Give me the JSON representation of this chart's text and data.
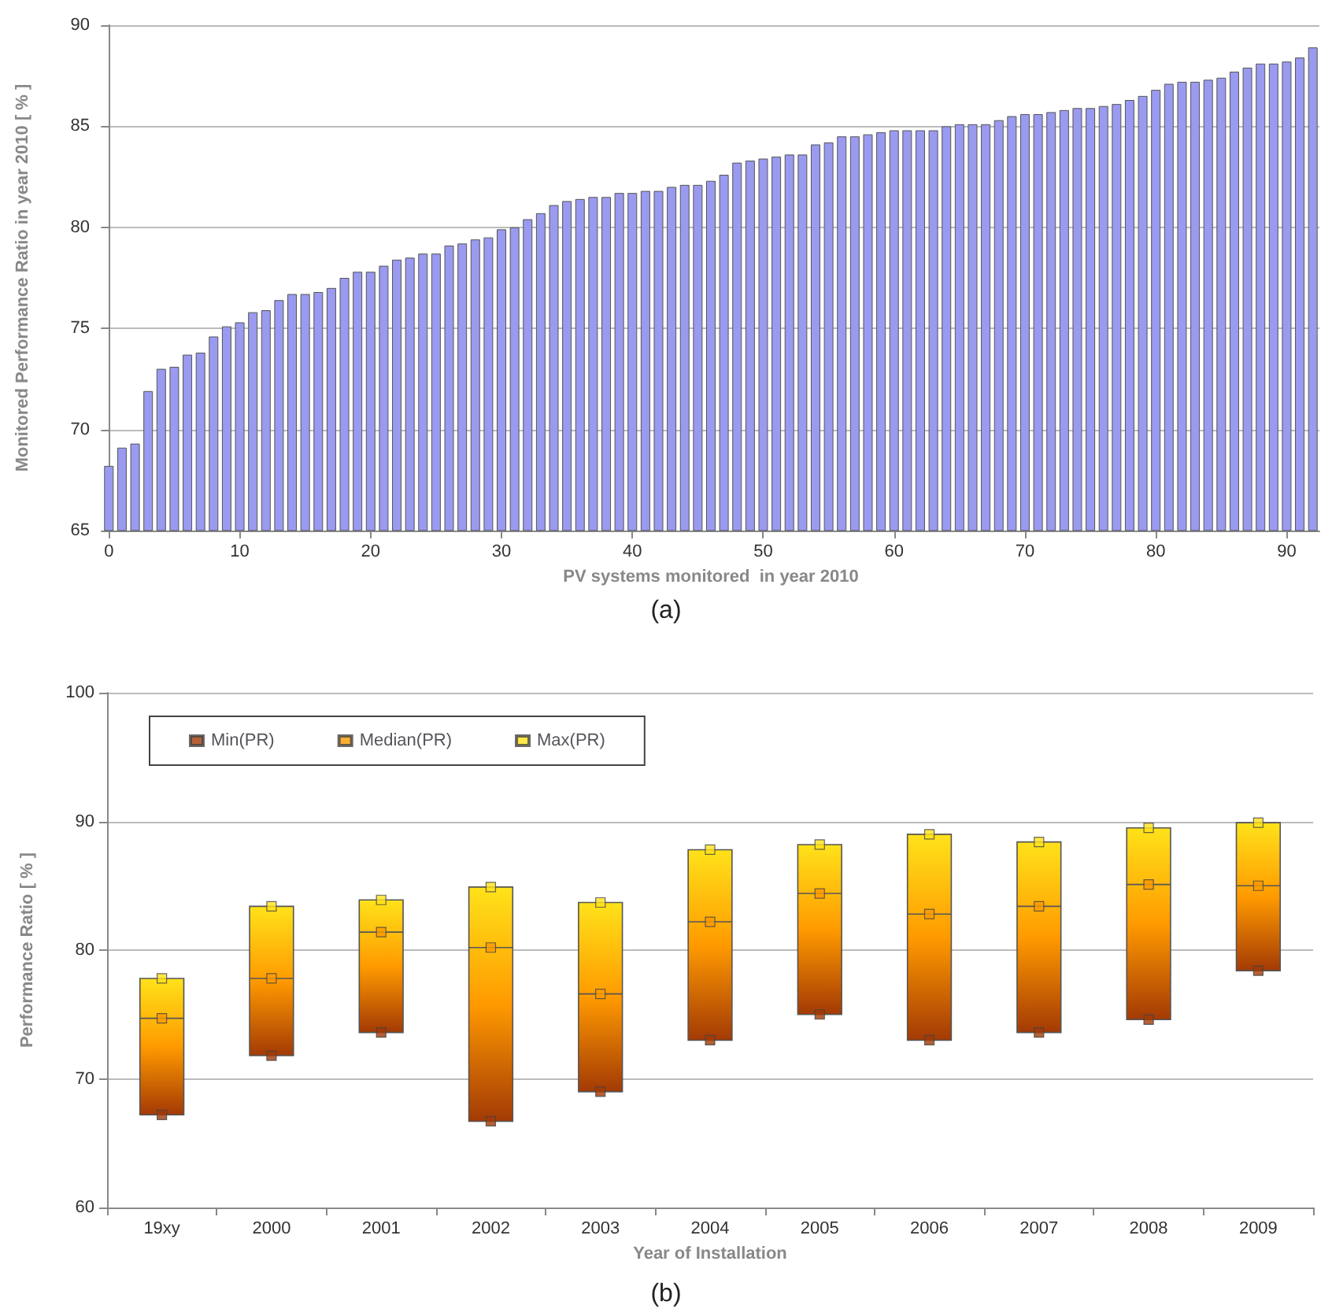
{
  "chart_data": [
    {
      "type": "bar",
      "xlabel": "PV systems monitored  in year 2010",
      "ylabel": "Monitored Performance Ratio in year 2010 [ % ]",
      "annotations": [
        "(a)"
      ],
      "x": [
        0,
        1,
        2,
        3,
        4,
        5,
        6,
        7,
        8,
        9,
        10,
        11,
        12,
        13,
        14,
        15,
        16,
        17,
        18,
        19,
        20,
        21,
        22,
        23,
        24,
        25,
        26,
        27,
        28,
        29,
        30,
        31,
        32,
        33,
        34,
        35,
        36,
        37,
        38,
        39,
        40,
        41,
        42,
        43,
        44,
        45,
        46,
        47,
        48,
        49,
        50,
        51,
        52,
        53,
        54,
        55,
        56,
        57,
        58,
        59,
        60,
        61,
        62,
        63,
        64,
        65,
        66,
        67,
        68,
        69,
        70,
        71,
        72,
        73,
        74,
        75,
        76,
        77,
        78,
        79,
        80,
        81,
        82,
        83,
        84,
        85,
        86,
        87,
        88,
        89,
        90,
        91,
        92
      ],
      "values": [
        68.2,
        69.1,
        69.3,
        71.9,
        73.0,
        73.1,
        73.7,
        73.8,
        74.6,
        75.1,
        75.3,
        75.8,
        75.9,
        76.4,
        76.7,
        76.7,
        76.8,
        77.0,
        77.5,
        77.8,
        77.8,
        78.1,
        78.4,
        78.5,
        78.7,
        78.7,
        79.1,
        79.2,
        79.4,
        79.5,
        79.9,
        80.0,
        80.4,
        80.7,
        81.1,
        81.3,
        81.4,
        81.5,
        81.5,
        81.7,
        81.7,
        81.8,
        81.8,
        82.0,
        82.1,
        82.1,
        82.3,
        82.6,
        83.2,
        83.3,
        83.4,
        83.5,
        83.6,
        83.6,
        84.1,
        84.2,
        84.5,
        84.5,
        84.6,
        84.7,
        84.8,
        84.8,
        84.8,
        84.8,
        85.0,
        85.1,
        85.1,
        85.1,
        85.3,
        85.5,
        85.6,
        85.6,
        85.7,
        85.8,
        85.9,
        85.9,
        86.0,
        86.1,
        86.3,
        86.5,
        86.8,
        87.1,
        87.2,
        87.2,
        87.3,
        87.4,
        87.7,
        87.9,
        88.1,
        88.1,
        88.2,
        88.4,
        88.9
      ],
      "color": "#9a9af0",
      "xlim": [
        -0.5,
        92.5
      ],
      "xticks": [
        0,
        10,
        20,
        30,
        40,
        50,
        60,
        70,
        80,
        90
      ],
      "ylim": [
        65,
        90
      ],
      "yticks": [
        65,
        70,
        75,
        80,
        85,
        90
      ],
      "grid": "y",
      "legend": false
    },
    {
      "type": "box",
      "xlabel": "Year of Installation",
      "ylabel": "Performance Ratio [ % ]",
      "annotations": [
        "(b)"
      ],
      "categories": [
        "19xy",
        "2000",
        "2001",
        "2002",
        "2003",
        "2004",
        "2005",
        "2006",
        "2007",
        "2008",
        "2009"
      ],
      "boxes": [
        {
          "low": 67.2,
          "q1": 67.2,
          "median": 74.7,
          "q3": 77.8,
          "high": 77.8
        },
        {
          "low": 71.8,
          "q1": 71.8,
          "median": 77.8,
          "q3": 83.4,
          "high": 83.4
        },
        {
          "low": 73.6,
          "q1": 73.6,
          "median": 81.4,
          "q3": 83.9,
          "high": 83.9
        },
        {
          "low": 66.7,
          "q1": 66.7,
          "median": 80.2,
          "q3": 84.9,
          "high": 84.9
        },
        {
          "low": 69.0,
          "q1": 69.0,
          "median": 76.6,
          "q3": 83.7,
          "high": 83.7
        },
        {
          "low": 73.0,
          "q1": 73.0,
          "median": 82.2,
          "q3": 87.8,
          "high": 87.8
        },
        {
          "low": 75.0,
          "q1": 75.0,
          "median": 84.4,
          "q3": 88.2,
          "high": 88.2
        },
        {
          "low": 73.0,
          "q1": 73.0,
          "median": 82.8,
          "q3": 89.0,
          "high": 89.0
        },
        {
          "low": 73.6,
          "q1": 73.6,
          "median": 83.4,
          "q3": 88.4,
          "high": 88.4
        },
        {
          "low": 74.6,
          "q1": 74.6,
          "median": 85.1,
          "q3": 89.5,
          "high": 89.5
        },
        {
          "low": 78.4,
          "q1": 78.4,
          "median": 85.0,
          "q3": 89.9,
          "high": 89.9
        }
      ],
      "marker": "square",
      "series": [
        {
          "name": "Min(PR)",
          "type": "scatter",
          "color": "#a33a05",
          "values": [
            67.2,
            71.8,
            73.6,
            66.7,
            69.0,
            73.0,
            75.0,
            73.0,
            73.6,
            74.6,
            78.4
          ]
        },
        {
          "name": "Median(PR)",
          "type": "scatter",
          "color": "#ff9a00",
          "values": [
            74.7,
            77.8,
            81.4,
            80.2,
            76.6,
            82.2,
            84.4,
            82.8,
            83.4,
            85.1,
            85.0
          ]
        },
        {
          "name": "Max(PR)",
          "type": "scatter",
          "color": "#ffe21a",
          "values": [
            77.8,
            83.4,
            83.9,
            84.9,
            83.7,
            87.8,
            88.2,
            89.0,
            88.4,
            89.5,
            89.9
          ]
        }
      ],
      "ylim": [
        60,
        100
      ],
      "yticks": [
        60,
        70,
        80,
        90,
        100
      ],
      "grid": "y",
      "legend": "top left"
    }
  ]
}
